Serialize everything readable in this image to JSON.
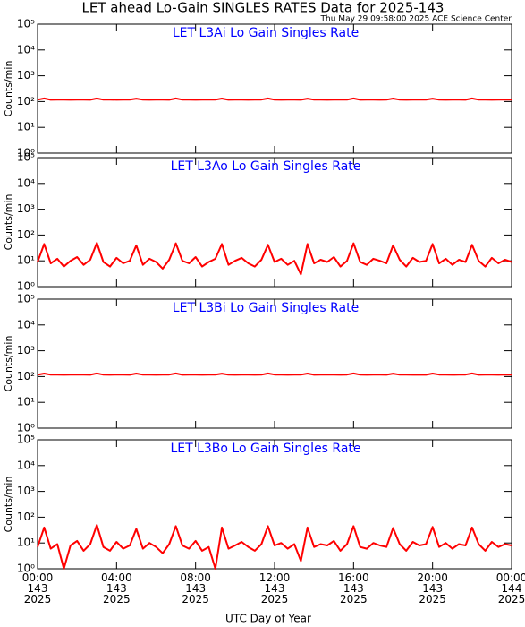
{
  "chart_data": {
    "type": "line",
    "title": "LET ahead Lo-Gain SINGLES RATES Data for 2025-143",
    "subtitle": "Thu May 29 09:58:00 2025 ACE Science Center",
    "xlabel": "UTC Day of Year",
    "xlim": [
      0,
      1440
    ],
    "xticks": [
      {
        "value": 0,
        "label": "00:00\n143\n2025"
      },
      {
        "value": 240,
        "label": "04:00\n143\n2025"
      },
      {
        "value": 480,
        "label": "08:00\n143\n2025"
      },
      {
        "value": 720,
        "label": "12:00\n143\n2025"
      },
      {
        "value": 960,
        "label": "16:00\n143\n2025"
      },
      {
        "value": 1200,
        "label": "20:00\n143\n2025"
      },
      {
        "value": 1440,
        "label": "00:00\n144\n2025"
      }
    ],
    "x": [
      0,
      20,
      40,
      60,
      80,
      100,
      120,
      140,
      160,
      180,
      200,
      220,
      240,
      260,
      280,
      300,
      320,
      340,
      360,
      380,
      400,
      420,
      440,
      460,
      480,
      500,
      520,
      540,
      560,
      580,
      600,
      620,
      640,
      660,
      680,
      700,
      720,
      740,
      760,
      780,
      800,
      820,
      840,
      860,
      880,
      900,
      920,
      940,
      960,
      980,
      1000,
      1020,
      1040,
      1060,
      1080,
      1100,
      1120,
      1140,
      1160,
      1180,
      1200,
      1220,
      1240,
      1260,
      1280,
      1300,
      1320,
      1340,
      1360,
      1380,
      1400,
      1420,
      1440
    ],
    "panels": [
      {
        "title": "LET L3Ai Lo Gain Singles Rate",
        "ylabel": "Counts/min",
        "yscale": "log",
        "color": "#ff0000",
        "ylim": [
          1,
          100000
        ],
        "yticks": [
          {
            "value": 1,
            "label": "10⁰"
          },
          {
            "value": 10,
            "label": "10¹"
          },
          {
            "value": 100,
            "label": "10²"
          },
          {
            "value": 1000,
            "label": "10³"
          },
          {
            "value": 10000,
            "label": "10⁴"
          },
          {
            "value": 100000,
            "label": "10⁵"
          }
        ],
        "values": [
          118,
          132,
          117,
          119,
          118,
          117,
          119,
          118,
          117,
          132,
          118,
          119,
          117,
          118,
          119,
          130,
          118,
          117,
          119,
          118,
          117,
          132,
          118,
          119,
          117,
          118,
          119,
          118,
          131,
          117,
          118,
          119,
          117,
          118,
          119,
          132,
          118,
          117,
          119,
          118,
          117,
          130,
          118,
          119,
          117,
          118,
          119,
          118,
          132,
          117,
          118,
          119,
          117,
          118,
          131,
          118,
          117,
          119,
          118,
          119,
          130,
          118,
          117,
          119,
          118,
          117,
          132,
          118,
          119,
          117,
          118,
          119,
          118
        ]
      },
      {
        "title": "LET L3Ao Lo Gain Singles Rate",
        "ylabel": "Counts/min",
        "yscale": "log",
        "color": "#ff0000",
        "ylim": [
          1,
          100000
        ],
        "yticks": [
          {
            "value": 1,
            "label": "10⁰"
          },
          {
            "value": 10,
            "label": "10¹"
          },
          {
            "value": 100,
            "label": "10²"
          },
          {
            "value": 1000,
            "label": "10³"
          },
          {
            "value": 10000,
            "label": "10⁴"
          },
          {
            "value": 100000,
            "label": "10⁵"
          }
        ],
        "values": [
          9,
          45,
          8,
          12,
          6,
          10,
          14,
          7,
          11,
          50,
          9,
          6,
          13,
          8,
          10,
          40,
          7,
          12,
          9,
          5,
          11,
          48,
          10,
          8,
          14,
          6,
          9,
          12,
          45,
          7,
          10,
          13,
          8,
          6,
          11,
          42,
          9,
          12,
          7,
          10,
          3,
          45,
          8,
          11,
          9,
          14,
          6,
          10,
          48,
          9,
          7,
          12,
          10,
          8,
          40,
          11,
          6,
          13,
          9,
          10,
          45,
          8,
          12,
          7,
          11,
          9,
          42,
          10,
          6,
          13,
          8,
          11,
          9
        ]
      },
      {
        "title": "LET L3Bi Lo Gain Singles Rate",
        "ylabel": "Counts/min",
        "yscale": "log",
        "color": "#ff0000",
        "ylim": [
          1,
          100000
        ],
        "yticks": [
          {
            "value": 1,
            "label": "10⁰"
          },
          {
            "value": 10,
            "label": "10¹"
          },
          {
            "value": 100,
            "label": "10²"
          },
          {
            "value": 1000,
            "label": "10³"
          },
          {
            "value": 10000,
            "label": "10⁴"
          },
          {
            "value": 100000,
            "label": "10⁵"
          }
        ],
        "values": [
          117,
          131,
          118,
          119,
          117,
          118,
          118,
          119,
          117,
          133,
          118,
          117,
          119,
          118,
          117,
          131,
          118,
          119,
          117,
          118,
          119,
          132,
          117,
          118,
          119,
          117,
          118,
          119,
          130,
          118,
          117,
          119,
          118,
          117,
          118,
          132,
          119,
          118,
          117,
          119,
          118,
          131,
          117,
          118,
          119,
          118,
          117,
          119,
          132,
          118,
          117,
          118,
          119,
          117,
          130,
          118,
          119,
          117,
          118,
          117,
          131,
          119,
          118,
          117,
          118,
          119,
          132,
          117,
          118,
          119,
          117,
          118,
          119
        ]
      },
      {
        "title": "LET L3Bo Lo Gain Singles Rate",
        "ylabel": "Counts/min",
        "yscale": "log",
        "color": "#ff0000",
        "ylim": [
          1,
          100000
        ],
        "yticks": [
          {
            "value": 1,
            "label": "10⁰"
          },
          {
            "value": 10,
            "label": "10¹"
          },
          {
            "value": 100,
            "label": "10²"
          },
          {
            "value": 1000,
            "label": "10³"
          },
          {
            "value": 10000,
            "label": "10⁴"
          },
          {
            "value": 100000,
            "label": "10⁵"
          }
        ],
        "values": [
          7,
          40,
          6,
          9,
          1,
          8,
          12,
          5,
          9,
          50,
          7,
          5,
          11,
          6,
          8,
          35,
          6,
          10,
          7,
          4,
          9,
          45,
          8,
          6,
          12,
          5,
          7,
          1,
          40,
          6,
          8,
          11,
          7,
          5,
          9,
          45,
          8,
          10,
          6,
          9,
          2,
          40,
          7,
          9,
          8,
          12,
          5,
          9,
          45,
          7,
          6,
          10,
          8,
          7,
          38,
          9,
          5,
          11,
          8,
          9,
          42,
          7,
          10,
          6,
          9,
          8,
          40,
          9,
          5,
          11,
          7,
          9,
          8
        ]
      }
    ]
  }
}
